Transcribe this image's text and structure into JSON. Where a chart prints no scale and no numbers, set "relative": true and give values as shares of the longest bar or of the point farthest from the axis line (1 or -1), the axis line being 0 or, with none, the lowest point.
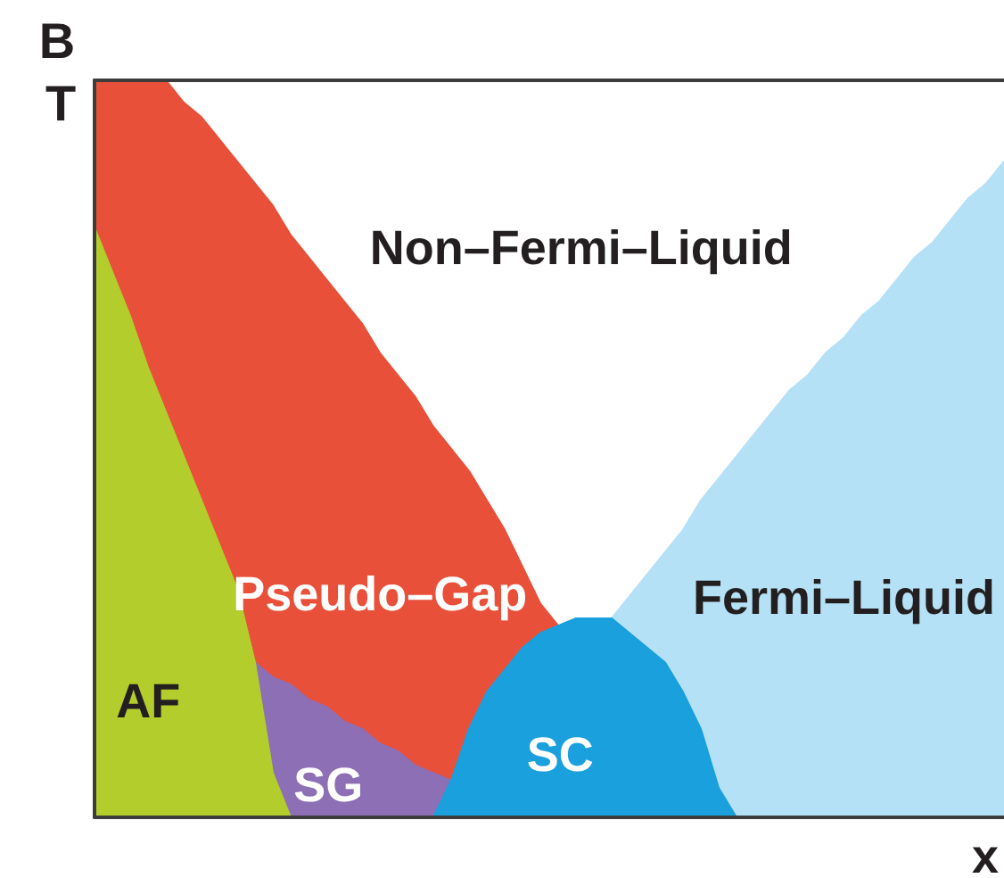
{
  "chart_data": {
    "type": "area",
    "title": "B",
    "xlabel": "x",
    "ylabel": "T",
    "relative": true,
    "tick_labels": false,
    "categories": [
      null,
      null,
      null,
      null,
      null,
      null,
      null,
      null,
      null,
      null,
      null,
      null,
      null,
      null,
      null,
      null,
      null,
      null,
      null,
      null,
      null,
      null,
      null,
      null,
      null,
      null,
      null,
      null,
      null,
      null,
      null,
      null,
      null,
      null,
      null,
      null,
      null,
      null,
      null,
      null,
      null,
      null,
      null,
      null,
      null,
      null,
      null,
      null,
      null,
      null,
      null,
      null
    ],
    "series": [
      {
        "name": "Pseudo–Gap",
        "color": "#e8503a",
        "values": [
          1,
          1,
          1,
          1,
          1,
          0.97,
          0.95,
          0.92,
          0.89,
          0.86,
          0.83,
          0.79,
          0.76,
          0.73,
          0.7,
          0.67,
          0.63,
          0.6,
          0.57,
          0.53,
          0.5,
          0.47,
          0.43,
          0.39,
          0.34,
          0.29,
          0.26,
          null,
          null,
          null,
          null,
          null,
          null,
          null,
          null,
          null,
          null,
          null,
          null,
          null,
          null,
          null,
          null,
          null,
          null,
          null,
          null,
          null,
          null,
          null,
          null,
          null
        ]
      },
      {
        "name": "SG",
        "color": "#8d6fb5",
        "values": [
          null,
          null,
          null,
          null,
          null,
          null,
          null,
          null,
          null,
          0.21,
          0.19,
          0.18,
          0.16,
          0.15,
          0.13,
          0.12,
          0.1,
          0.09,
          0.07,
          0.06,
          0.05,
          null,
          null,
          null,
          null,
          null,
          null,
          null,
          null,
          null,
          null,
          null,
          null,
          null,
          null,
          null,
          null,
          null,
          null,
          null,
          null,
          null,
          null,
          null,
          null,
          null,
          null,
          null,
          null,
          null,
          null,
          null
        ]
      },
      {
        "name": "AF",
        "color": "#b3ce2c",
        "values": [
          0.8,
          0.74,
          0.68,
          0.61,
          0.55,
          0.49,
          0.43,
          0.37,
          0.31,
          0.21,
          0.06,
          0,
          null,
          null,
          null,
          null,
          null,
          null,
          null,
          null,
          null,
          null,
          null,
          null,
          null,
          null,
          null,
          null,
          null,
          null,
          null,
          null,
          null,
          null,
          null,
          null,
          null,
          null,
          null,
          null,
          null,
          null,
          null,
          null,
          null,
          null,
          null,
          null,
          null,
          null,
          null,
          null
        ]
      },
      {
        "name": "Fermi–Liquid",
        "color": "#b5e1f6",
        "values": [
          null,
          null,
          null,
          null,
          null,
          null,
          null,
          null,
          null,
          null,
          null,
          null,
          null,
          null,
          null,
          null,
          null,
          null,
          null,
          null,
          null,
          null,
          null,
          null,
          null,
          null,
          null,
          null,
          null,
          0.27,
          0.3,
          0.33,
          0.36,
          0.39,
          0.43,
          0.46,
          0.49,
          0.52,
          0.55,
          0.58,
          0.6,
          0.63,
          0.65,
          0.68,
          0.7,
          0.73,
          0.76,
          0.78,
          0.81,
          0.84,
          0.86,
          0.89
        ]
      },
      {
        "name": "SC",
        "color": "#1aa0dc",
        "values": [
          null,
          null,
          null,
          null,
          null,
          null,
          null,
          null,
          null,
          null,
          null,
          null,
          null,
          null,
          null,
          null,
          null,
          null,
          null,
          0,
          0.05,
          0.12,
          0.17,
          0.2,
          0.23,
          0.25,
          0.26,
          0.27,
          0.27,
          0.27,
          0.25,
          0.23,
          0.21,
          0.17,
          0.12,
          0.04,
          0,
          null,
          null,
          null,
          null,
          null,
          null,
          null,
          null,
          null,
          null,
          null,
          null,
          null,
          null,
          null
        ]
      }
    ],
    "annotations": [
      "Non–Fermi–Liquid"
    ]
  }
}
